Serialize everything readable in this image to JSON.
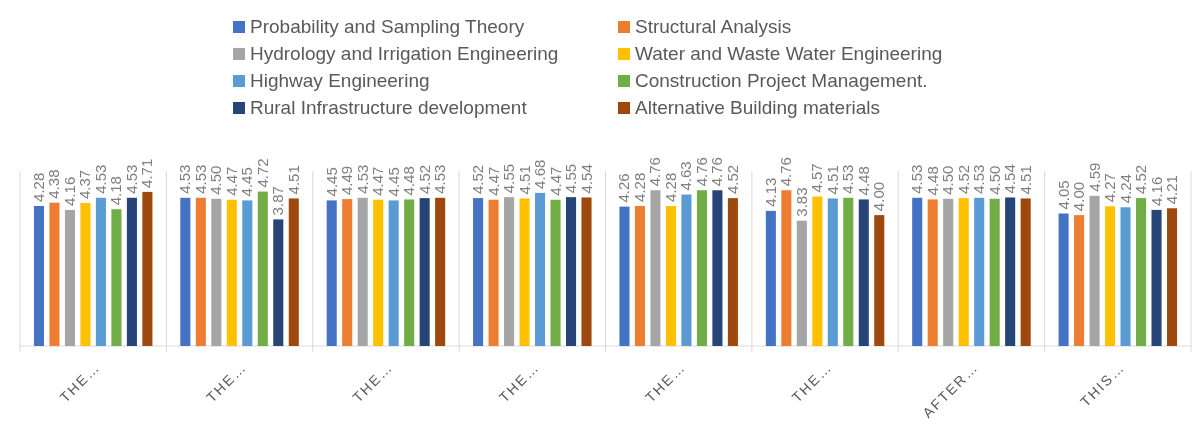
{
  "chart_data": {
    "type": "bar",
    "categories": [
      "THE…",
      "THE…",
      "THE…",
      "THE…",
      "THE…",
      "THE…",
      "AFTER…",
      "THIS…"
    ],
    "series": [
      {
        "name": "Probability and Sampling Theory",
        "color": "#4472c4",
        "values": [
          4.28,
          4.53,
          4.45,
          4.52,
          4.26,
          4.13,
          4.53,
          4.05
        ],
        "value_labels": [
          "4.28",
          "4.53",
          "4.45",
          "4.52",
          "4.26",
          "4.13",
          "4.53",
          "4.05"
        ]
      },
      {
        "name": "Structural Analysis",
        "color": "#ed7d31",
        "values": [
          4.38,
          4.53,
          4.49,
          4.47,
          4.28,
          4.76,
          4.48,
          4.0
        ],
        "value_labels": [
          "4.38",
          "4.53",
          "4.49",
          "4.47",
          "4.28",
          "4.76",
          "4.48",
          "4.00"
        ]
      },
      {
        "name": "Hydrology and Irrigation Engineering",
        "color": "#a5a5a5",
        "values": [
          4.16,
          4.5,
          4.53,
          4.55,
          4.76,
          3.83,
          4.5,
          4.59
        ],
        "value_labels": [
          "4.16",
          "4.50",
          "4.53",
          "4.55",
          "4.76",
          "3.83",
          "4.50",
          "4.59"
        ]
      },
      {
        "name": "Water and Waste Water Engineering",
        "color": "#ffc000",
        "values": [
          4.37,
          4.47,
          4.47,
          4.51,
          4.28,
          4.57,
          4.52,
          4.27
        ],
        "value_labels": [
          "4.37",
          "4.47",
          "4.47",
          "4.51",
          "4.28",
          "4.57",
          "4.52",
          "4.27"
        ]
      },
      {
        "name": "Highway Engineering",
        "color": "#5b9bd5",
        "values": [
          4.53,
          4.45,
          4.45,
          4.68,
          4.63,
          4.51,
          4.53,
          4.24
        ],
        "value_labels": [
          "4.53",
          "4.45",
          "4.45",
          "4.68",
          "4.63",
          "4.51",
          "4.53",
          "4.24"
        ]
      },
      {
        "name": "Construction Project Management.",
        "color": "#70ad47",
        "values": [
          4.18,
          4.72,
          4.48,
          4.47,
          4.76,
          4.53,
          4.5,
          4.52
        ],
        "value_labels": [
          "4.18",
          "4.72",
          "4.48",
          "4.47",
          "4.76",
          "4.53",
          "4.50",
          "4.52"
        ]
      },
      {
        "name": "Rural Infrastructure development",
        "color": "#264478",
        "values": [
          4.53,
          3.87,
          4.52,
          4.55,
          4.76,
          4.48,
          4.54,
          4.16
        ],
        "value_labels": [
          "4.53",
          "3.87",
          "4.52",
          "4.55",
          "4.76",
          "4.48",
          "4.54",
          "4.16"
        ]
      },
      {
        "name": "Alternative Building materials",
        "color": "#9e480e",
        "values": [
          4.71,
          4.51,
          4.53,
          4.54,
          4.52,
          4.0,
          4.51,
          4.21
        ],
        "value_labels": [
          "4.71",
          "4.51",
          "4.53",
          "4.54",
          "4.52",
          "4.00",
          "4.51",
          "4.21"
        ]
      }
    ],
    "tick_labels": "x",
    "legend": "top"
  }
}
